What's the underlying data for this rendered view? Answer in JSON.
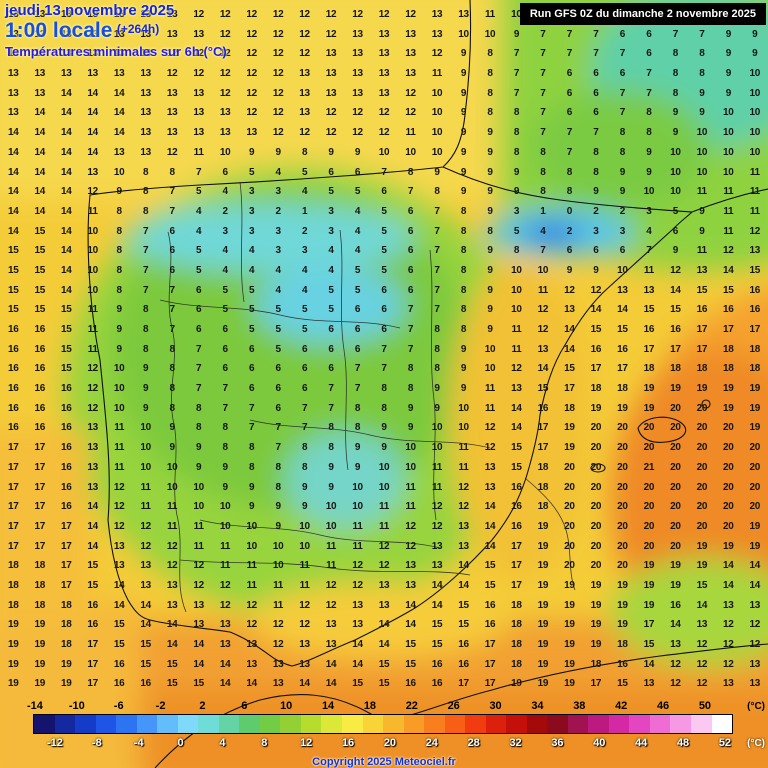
{
  "header": {
    "date": "jeudi 13 novembre 2025",
    "time": "1:00 locale",
    "offset": "(+264h)",
    "subtitle": "Températures minimales sur 6h (°C)",
    "run_info": "Run GFS 0Z du dimanche 2 novembre 2025"
  },
  "footer": {
    "copyright": "Copyright 2025 Meteociel.fr"
  },
  "legend": {
    "unit": "(°C)",
    "top_labels": [
      "-14",
      "-10",
      "-6",
      "-2",
      "2",
      "6",
      "10",
      "14",
      "18",
      "22",
      "26",
      "30",
      "34",
      "38",
      "42",
      "46",
      "50"
    ],
    "bottom_labels": [
      "-12",
      "-8",
      "-4",
      "0",
      "4",
      "8",
      "12",
      "16",
      "20",
      "24",
      "28",
      "32",
      "36",
      "40",
      "44",
      "48",
      "52"
    ],
    "colors": [
      "#14146e",
      "#1428a0",
      "#143cc8",
      "#1e55e6",
      "#2d74f2",
      "#4596f8",
      "#63bdfa",
      "#7fd9fa",
      "#70dcd8",
      "#64d4a4",
      "#5ecc6c",
      "#72cc44",
      "#92d034",
      "#b6dc2e",
      "#dce838",
      "#f8ec44",
      "#f8d436",
      "#f8b82e",
      "#f89c26",
      "#f87e1e",
      "#f85e16",
      "#f03c0e",
      "#dc200c",
      "#c41008",
      "#a40a0a",
      "#8c0a1e",
      "#a01250",
      "#bc1a80",
      "#d428a4",
      "#e446c2",
      "#ee6cd4",
      "#f698e4",
      "#fac8f0",
      "#ffffff"
    ]
  },
  "map_colors": {
    "base_yellow": "#f4cc38",
    "green": "#8fd23f",
    "cyan": "#6fd8d8",
    "dark_blue": "#1e66e0",
    "orange": "#f5a12d",
    "deep_orange": "#ef8a25"
  },
  "temperature_grid": {
    "rows": [
      "13 13 13 13 13 13 13 12 12 12 12 12 12 12 12 12 13 13 11 10 9 8 7 7 7 7 8 9 9",
      "13 13 13 13 13 13 13 13 12 12 12 12 12 13 13 13 13 10 10 9 7 7 7 6 6 7 7 9 9",
      "13 13 13 13 13 13 12 12 12 12 12 12 13 13 13 13 12 9 8 7 7 7 7 7 6 8 8 9 9",
      "13 13 13 13 13 13 12 12 12 12 12 13 13 13 13 13 11 9 8 7 7 6 6 6 7 8 8 9 10",
      "13 13 14 14 14 13 13 13 12 12 12 13 13 13 13 12 10 9 8 7 7 6 6 7 7 8 9 9 10",
      "13 14 14 14 14 13 13 13 13 12 12 13 12 12 12 12 10 9 8 8 7 6 6 7 8 9 9 10 10",
      "14 14 14 14 14 13 13 13 13 13 12 12 12 12 12 11 10 9 9 8 7 7 7 8 8 9 10 10 10",
      "14 14 14 14 13 13 12 11 10 9 9 8 9 9 10 10 10 9 9 8 8 7 8 8 9 10 10 10 10",
      "14 14 14 13 10 8 8 7 6 5 4 5 6 6 7 8 9 9 9 9 8 8 8 9 9 10 10 10 11",
      "14 14 14 12 9 8 7 5 4 3 3 4 5 5 6 7 8 9 9 9 8 8 9 9 10 10 11 11 11",
      "14 14 14 11 8 8 7 4 2 3 2 1 3 4 5 6 7 8 9 3 1 0 2 2 3 5 9 11 11",
      "14 15 14 10 8 7 6 4 3 3 3 2 3 4 5 6 7 8 8 5 4 2 3 3 4 6 9 11 12",
      "15 15 14 10 8 7 6 5 4 4 3 3 4 4 5 6 7 8 9 8 7 6 6 6 7 9 11 12 13",
      "15 15 14 10 8 7 6 5 4 4 4 4 4 5 5 6 7 8 9 10 10 9 9 10 11 12 13 14 15",
      "15 15 14 10 8 7 7 6 5 5 4 4 5 5 6 6 7 8 9 10 11 12 12 13 13 14 15 15 16",
      "15 15 15 11 9 8 7 6 5 5 5 5 5 6 6 7 7 8 9 10 12 13 14 14 15 15 16 16 16",
      "16 16 15 11 9 8 7 6 6 5 5 5 6 6 6 7 8 8 9 11 12 14 15 15 16 16 17 17 17",
      "16 16 15 11 9 8 8 7 6 6 5 6 6 6 7 7 8 9 10 11 13 14 16 16 17 17 17 18 18",
      "16 16 15 12 10 9 8 7 6 6 6 6 6 7 7 8 8 9 10 12 14 15 17 17 18 18 18 18 18",
      "16 16 16 12 10 9 8 7 7 6 6 6 7 7 8 8 9 9 11 13 15 17 18 18 19 19 19 19 19",
      "16 16 16 12 10 9 8 8 7 7 6 7 7 8 8 9 9 10 11 14 16 18 19 19 19 20 20 19 19",
      "16 16 16 13 11 10 9 8 8 7 7 7 8 8 9 9 10 10 12 14 17 19 20 20 20 20 20 20 19",
      "17 17 16 13 11 10 9 9 8 8 7 8 8 9 9 10 10 11 12 15 17 19 20 20 20 20 20 20 20",
      "17 17 16 13 11 10 10 9 9 8 8 8 9 9 10 10 11 11 13 15 18 20 20 20 21 20 20 20 20",
      "17 17 16 13 12 11 10 10 9 9 8 9 9 10 10 11 11 12 13 16 18 20 20 20 20 20 20 20 20",
      "17 17 16 14 12 11 11 10 10 9 9 9 10 10 11 11 12 12 14 16 18 20 20 20 20 20 20 20 20",
      "17 17 17 14 12 12 11 11 10 10 9 10 10 11 11 12 12 13 14 16 19 20 20 20 20 20 20 20 19",
      "17 17 17 14 13 12 12 11 11 10 10 10 11 11 12 12 13 13 14 17 19 20 20 20 20 20 19 19 19",
      "18 18 17 15 13 13 12 12 11 11 10 11 11 12 12 13 13 14 15 17 19 20 20 20 19 19 19 14 14",
      "18 18 17 15 14 13 13 12 12 11 11 11 12 12 13 13 14 14 15 17 19 19 19 19 19 19 15 14 14",
      "18 18 18 16 14 14 13 13 12 12 11 12 12 13 13 14 14 15 16 18 19 19 19 19 19 16 14 13 13",
      "19 19 18 16 15 14 14 13 13 12 12 12 13 13 14 14 15 15 16 18 19 19 19 19 17 14 13 12 12",
      "19 19 18 17 15 15 14 14 13 13 12 13 13 14 14 15 15 16 17 18 19 19 19 18 15 13 12 12 12",
      "19 19 19 17 16 15 15 14 14 13 13 13 14 14 15 15 16 16 17 18 19 19 18 16 14 12 12 12 13",
      "19 19 19 17 16 16 15 15 14 14 13 14 14 15 15 16 16 17 17 19 19 19 17 15 13 12 12 13 13"
    ]
  }
}
